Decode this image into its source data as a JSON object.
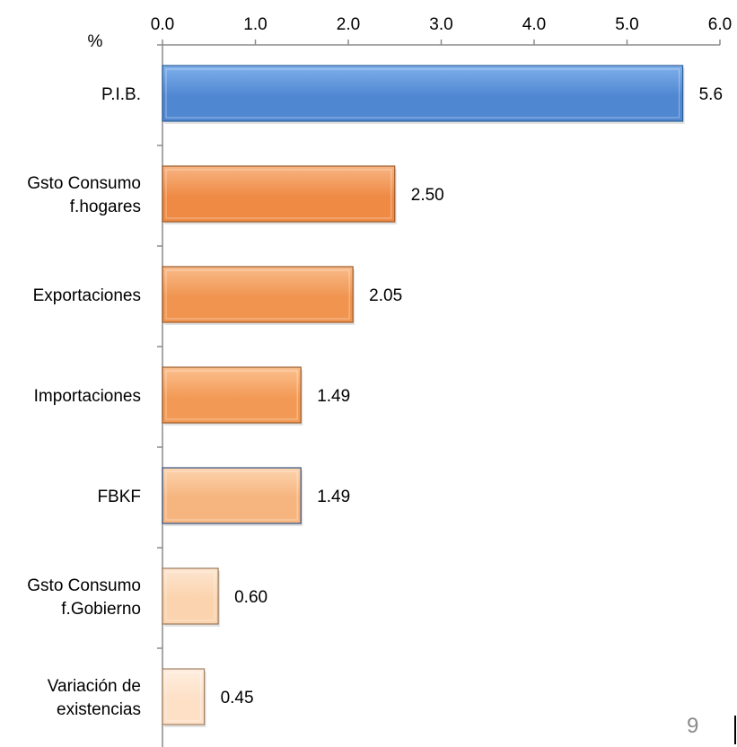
{
  "chart_data": {
    "type": "bar",
    "orientation": "horizontal",
    "unit_label": "%",
    "categories": [
      [
        "P.I.B."
      ],
      [
        "Gsto Consumo",
        "f.hogares"
      ],
      [
        "Exportaciones"
      ],
      [
        "Importaciones"
      ],
      [
        "FBKF"
      ],
      [
        "Gsto Consumo",
        "f.Gobierno"
      ],
      [
        "Variación de",
        "existencias"
      ]
    ],
    "values": [
      5.6,
      2.5,
      2.05,
      1.49,
      1.49,
      0.6,
      0.45
    ],
    "value_labels": [
      "5.6",
      "2.50",
      "2.05",
      "1.49",
      "1.49",
      "0.60",
      "0.45"
    ],
    "xlim": [
      0,
      6
    ],
    "x_ticks": [
      "0.0",
      "1.0",
      "2.0",
      "3.0",
      "4.0",
      "5.0",
      "6.0"
    ],
    "x_axis_position": "top",
    "grid": false,
    "legend": "none",
    "colors": {
      "bars": [
        "#4f87d1",
        "#ee8a44",
        "#f0944f",
        "#f29a55",
        "#f6b47e",
        "#fbd3ae",
        "#fde0c6"
      ],
      "bars_light": [
        "#7fb0ec",
        "#f8b483",
        "#f9bb8a",
        "#fbc08f",
        "#fcd3ad",
        "#fde5cf",
        "#feeedf"
      ],
      "borders": [
        "#2f5f98",
        "#9a5a2a",
        "#9a5a2a",
        "#9a5a2a",
        "#2d4f86",
        "#9a7a5a",
        "#a08060"
      ]
    }
  },
  "page": {
    "number": "9"
  }
}
